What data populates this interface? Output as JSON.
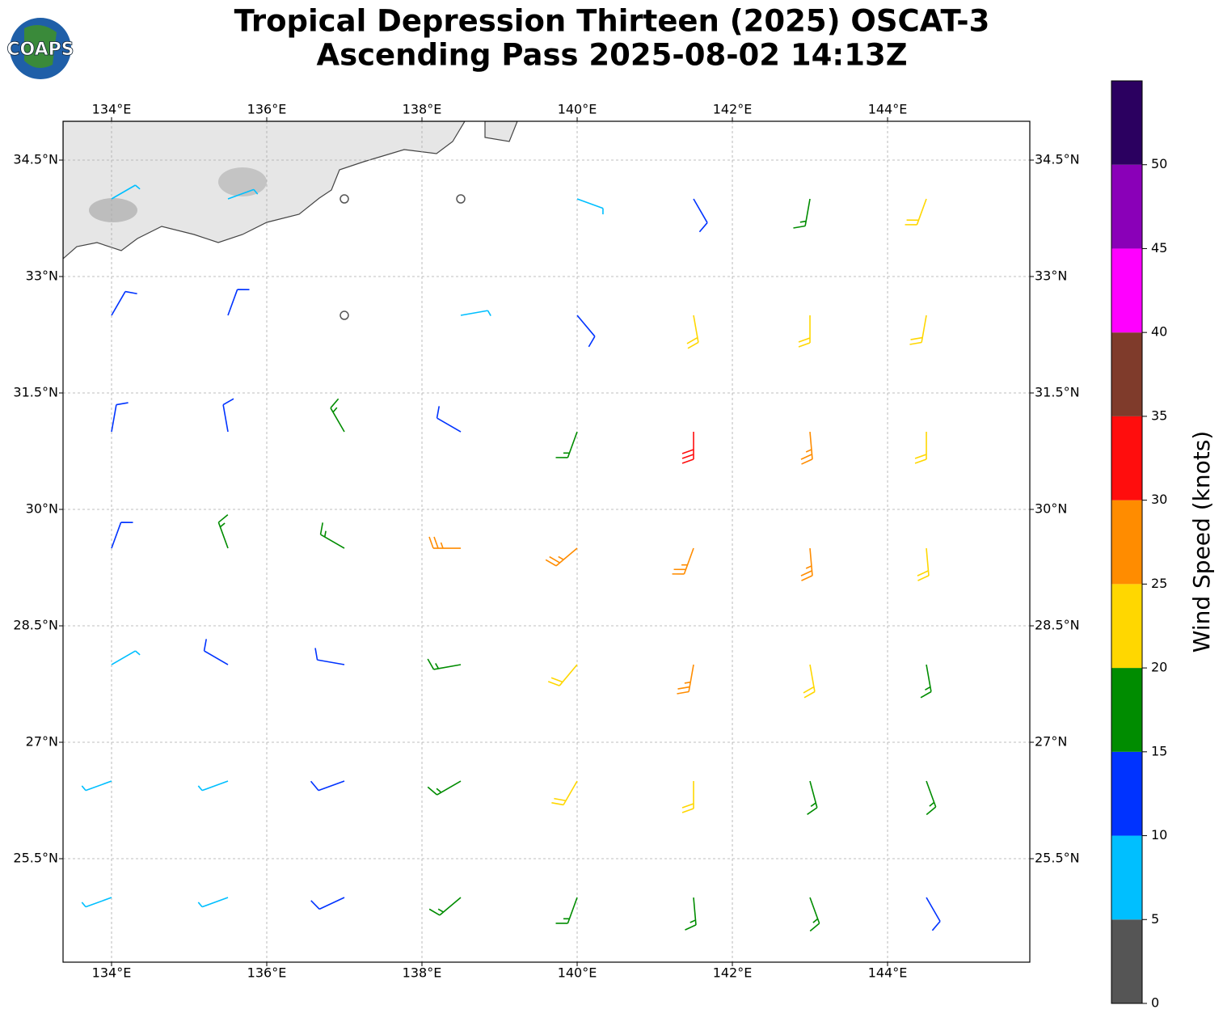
{
  "chart_data": {
    "type": "barbs",
    "logo": "COAPS",
    "title": [
      "Tropical Depression Thirteen (2025) OSCAT-3",
      "Ascending Pass 2025-08-02 14:13Z"
    ],
    "xlim": [
      133.375,
      145.833
    ],
    "ylim": [
      24.167,
      35.0
    ],
    "xticks": [
      {
        "value": 134,
        "label": "134°E"
      },
      {
        "value": 136,
        "label": "136°E"
      },
      {
        "value": 138,
        "label": "138°E"
      },
      {
        "value": 140,
        "label": "140°E"
      },
      {
        "value": 142,
        "label": "142°E"
      },
      {
        "value": 144,
        "label": "144°E"
      }
    ],
    "yticks": [
      {
        "value": 25.5,
        "label": "25.5°N"
      },
      {
        "value": 27,
        "label": "27°N"
      },
      {
        "value": 28.5,
        "label": "28.5°N"
      },
      {
        "value": 30,
        "label": "30°N"
      },
      {
        "value": 31.5,
        "label": "31.5°N"
      },
      {
        "value": 33,
        "label": "33°N"
      },
      {
        "value": 34.5,
        "label": "34.5°N"
      }
    ],
    "grid": true,
    "barbs": {
      "lons": [
        134,
        135.5,
        137,
        138.5,
        140,
        141.5,
        143,
        144.5
      ],
      "lats": [
        34,
        32.5,
        31,
        29.5,
        28,
        26.5,
        25
      ],
      "speed": [
        [
          8,
          9,
          3,
          4,
          8,
          12,
          18,
          22
        ],
        [
          10,
          12,
          4,
          8,
          12,
          22,
          24,
          22
        ],
        [
          12,
          14,
          16,
          14,
          18,
          30,
          26,
          23
        ],
        [
          12,
          16,
          18,
          26,
          27,
          28,
          27,
          22
        ],
        [
          9,
          12,
          14,
          18,
          24,
          26,
          24,
          18
        ],
        [
          8,
          9,
          12,
          16,
          22,
          23,
          19,
          16
        ],
        [
          8,
          9,
          12,
          16,
          18,
          18,
          17,
          13
        ]
      ],
      "direction": [
        [
          60,
          70,
          80,
          90,
          110,
          150,
          190,
          200
        ],
        [
          30,
          20,
          60,
          80,
          140,
          170,
          180,
          190
        ],
        [
          10,
          350,
          330,
          300,
          200,
          180,
          175,
          180
        ],
        [
          20,
          340,
          300,
          270,
          230,
          200,
          175,
          175
        ],
        [
          60,
          300,
          280,
          260,
          220,
          190,
          170,
          170
        ],
        [
          250,
          250,
          250,
          240,
          210,
          180,
          165,
          160
        ],
        [
          250,
          250,
          245,
          230,
          200,
          175,
          160,
          150
        ]
      ]
    },
    "colorbar": {
      "label": "Wind Speed (knots)",
      "lim": [
        0,
        55
      ],
      "ticks": [
        0,
        5,
        10,
        15,
        20,
        25,
        30,
        35,
        40,
        45,
        50
      ],
      "bounds": [
        0,
        5,
        10,
        15,
        20,
        25,
        30,
        35,
        40,
        45,
        50,
        55
      ],
      "colors": [
        "#555555",
        "#00bfff",
        "#0033ff",
        "#008c00",
        "#ffd700",
        "#ff8c00",
        "#ff0d0d",
        "#7f3b2b",
        "#ff00ff",
        "#8a00b8",
        "#2b0060"
      ]
    }
  }
}
